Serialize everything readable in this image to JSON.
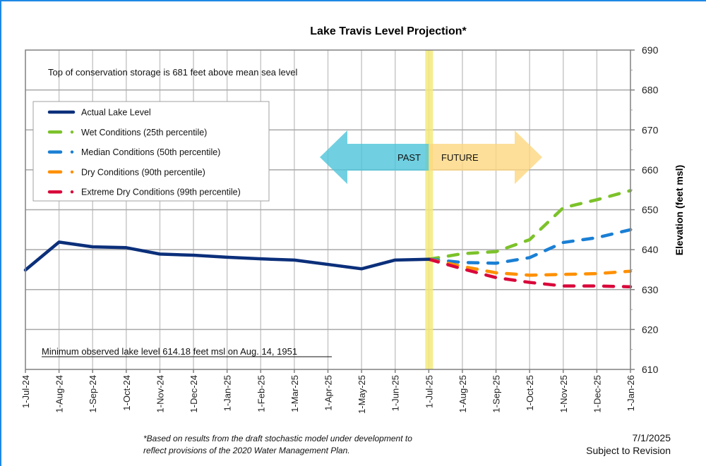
{
  "chart_data": {
    "type": "line",
    "title": "Lake Travis Level Projection*",
    "xlabel": "",
    "ylabel": "Elevation (feet msl)",
    "ylim": [
      610,
      690
    ],
    "yticks": [
      610,
      620,
      630,
      640,
      650,
      660,
      670,
      680,
      690
    ],
    "y_axis_side": "right",
    "grid": true,
    "x": [
      "1-Jul-24",
      "1-Aug-24",
      "1-Sep-24",
      "1-Oct-24",
      "1-Nov-24",
      "1-Dec-24",
      "1-Jan-25",
      "1-Feb-25",
      "1-Mar-25",
      "1-Apr-25",
      "1-May-25",
      "1-Jun-25",
      "1-Jul-25",
      "1-Aug-25",
      "1-Sep-25",
      "1-Oct-25",
      "1-Nov-25",
      "1-Dec-25",
      "1-Jan-26"
    ],
    "series": [
      {
        "name": "Actual Lake Level",
        "color": "#0b2f7a",
        "style": "solid",
        "start_index": 0,
        "values": [
          634.9,
          641.9,
          640.7,
          640.5,
          638.9,
          638.6,
          638.1,
          637.7,
          637.4,
          636.3,
          635.2,
          637.4,
          637.6
        ]
      },
      {
        "name": "Wet Conditions (25th percentile)",
        "color": "#7cc22a",
        "style": "dashed",
        "start_index": 12,
        "values": [
          637.6,
          639.0,
          639.5,
          642.5,
          650.5,
          652.5,
          654.8
        ]
      },
      {
        "name": "Median Conditions (50th percentile)",
        "color": "#1a7fd4",
        "style": "dashed",
        "start_index": 12,
        "values": [
          637.6,
          636.8,
          636.6,
          638.0,
          641.8,
          643.0,
          645.0
        ]
      },
      {
        "name": "Dry Conditions (90th percentile)",
        "color": "#ff9000",
        "style": "dashed",
        "start_index": 12,
        "values": [
          637.6,
          635.8,
          634.2,
          633.6,
          633.8,
          634.0,
          634.6
        ]
      },
      {
        "name": "Extreme Dry Conditions (99th percentile)",
        "color": "#d9073a",
        "style": "dashed",
        "start_index": 12,
        "values": [
          637.6,
          635.2,
          633.0,
          631.8,
          630.9,
          630.9,
          630.7
        ]
      }
    ],
    "current_date_marker": {
      "x": "1-Jul-25",
      "color": "#f3ea7a"
    },
    "legend_placement": "top-left",
    "annotations": {
      "top": "Top of conservation storage is 681 feet above mean sea level",
      "bottom": "Minimum observed lake level 614.18 feet msl on Aug. 14, 1951",
      "past_label": "PAST",
      "future_label": "FUTURE",
      "past_color": "#4cc4da",
      "future_color": "#fdd77f"
    }
  },
  "footer": {
    "footnote_line1": "*Based on results from the draft stochastic model under development to",
    "footnote_line2": "reflect provisions of the 2020 Water Management Plan.",
    "date": "7/1/2025",
    "revision": "Subject to Revision"
  }
}
